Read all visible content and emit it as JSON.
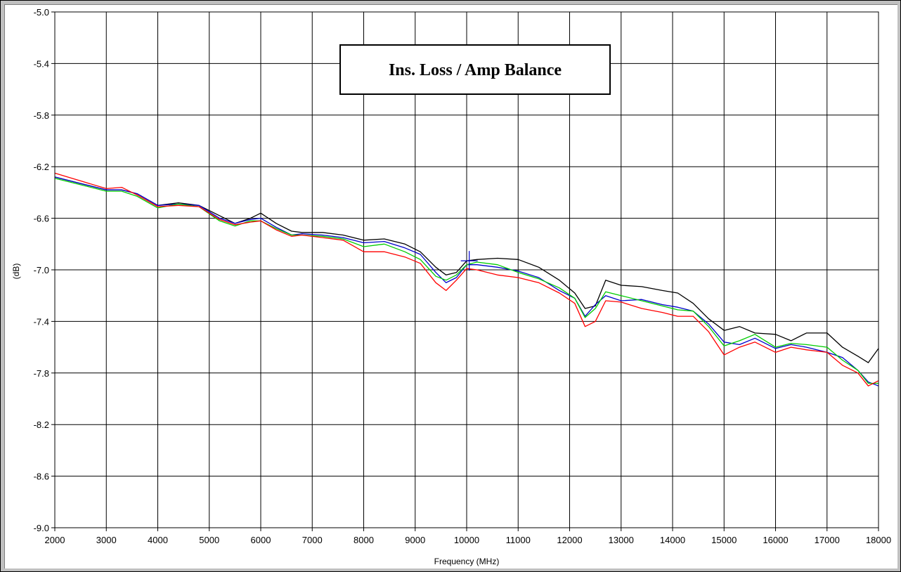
{
  "chart_data": {
    "type": "line",
    "title": "Ins. Loss / Amp Balance",
    "xlabel": "Frequency (MHz)",
    "ylabel": "(dB)",
    "xlim": [
      2000,
      18000
    ],
    "ylim": [
      -9.0,
      -5.0
    ],
    "xticks": [
      2000,
      3000,
      4000,
      5000,
      6000,
      7000,
      8000,
      9000,
      10000,
      11000,
      12000,
      13000,
      14000,
      15000,
      16000,
      17000,
      18000
    ],
    "xtick_labels": [
      "2000",
      "3000",
      "4000",
      "5000",
      "6000",
      "7000",
      "8000",
      "9000",
      "10000",
      "11000",
      "12000",
      "13000",
      "14000",
      "15000",
      "16000",
      "17000",
      "18000"
    ],
    "yticks": [
      -5.0,
      -5.4,
      -5.8,
      -6.2,
      -6.6,
      -7.0,
      -7.4,
      -7.8,
      -8.2,
      -8.6,
      -9.0
    ],
    "ytick_labels": [
      "-5.0",
      "-5.4",
      "-5.8",
      "-6.2",
      "-6.6",
      "-7.0",
      "-7.4",
      "-7.8",
      "-8.2",
      "-8.6",
      "-9.0"
    ],
    "grid": true,
    "marker": {
      "x": 10050,
      "y": -6.93
    },
    "series": [
      {
        "color": "#000000",
        "x": [
          2000,
          2500,
          3000,
          3300,
          3600,
          4000,
          4400,
          4800,
          5200,
          5500,
          5800,
          6000,
          6300,
          6600,
          6800,
          7200,
          7600,
          8000,
          8400,
          8800,
          9100,
          9400,
          9600,
          9800,
          10000,
          10200,
          10600,
          11000,
          11400,
          11800,
          12100,
          12300,
          12500,
          12700,
          13000,
          13400,
          13800,
          14100,
          14400,
          14700,
          15000,
          15300,
          15600,
          16000,
          16300,
          16600,
          17000,
          17300,
          17600,
          17800,
          18000
        ],
        "y": [
          -6.28,
          -6.33,
          -6.38,
          -6.38,
          -6.41,
          -6.5,
          -6.48,
          -6.5,
          -6.58,
          -6.64,
          -6.6,
          -6.56,
          -6.64,
          -6.7,
          -6.71,
          -6.71,
          -6.73,
          -6.77,
          -6.76,
          -6.8,
          -6.86,
          -6.98,
          -7.04,
          -7.02,
          -6.93,
          -6.92,
          -6.91,
          -6.92,
          -6.98,
          -7.08,
          -7.18,
          -7.3,
          -7.28,
          -7.08,
          -7.12,
          -7.13,
          -7.16,
          -7.18,
          -7.26,
          -7.38,
          -7.47,
          -7.44,
          -7.49,
          -7.5,
          -7.55,
          -7.49,
          -7.49,
          -7.6,
          -7.67,
          -7.72,
          -7.61
        ]
      },
      {
        "color": "#0000cc",
        "x": [
          2000,
          2500,
          3000,
          3300,
          3600,
          4000,
          4400,
          4800,
          5200,
          5500,
          5800,
          6000,
          6300,
          6600,
          6800,
          7200,
          7600,
          8000,
          8400,
          8800,
          9100,
          9400,
          9600,
          9800,
          10000,
          10200,
          10600,
          11000,
          11400,
          11800,
          12100,
          12300,
          12500,
          12700,
          13000,
          13400,
          13800,
          14100,
          14400,
          14700,
          15000,
          15300,
          15600,
          16000,
          16300,
          16600,
          17000,
          17300,
          17600,
          17800,
          18000
        ],
        "y": [
          -6.28,
          -6.33,
          -6.38,
          -6.38,
          -6.41,
          -6.5,
          -6.49,
          -6.5,
          -6.6,
          -6.64,
          -6.61,
          -6.6,
          -6.67,
          -6.73,
          -6.72,
          -6.73,
          -6.75,
          -6.79,
          -6.78,
          -6.83,
          -6.88,
          -7.02,
          -7.1,
          -7.06,
          -6.96,
          -6.96,
          -6.98,
          -7.01,
          -7.06,
          -7.16,
          -7.22,
          -7.36,
          -7.27,
          -7.2,
          -7.24,
          -7.23,
          -7.27,
          -7.29,
          -7.32,
          -7.42,
          -7.56,
          -7.58,
          -7.53,
          -7.61,
          -7.58,
          -7.6,
          -7.64,
          -7.68,
          -7.78,
          -7.87,
          -7.9
        ]
      },
      {
        "color": "#00cc00",
        "x": [
          2000,
          2500,
          3000,
          3300,
          3600,
          4000,
          4400,
          4800,
          5200,
          5500,
          5800,
          6000,
          6300,
          6600,
          6800,
          7200,
          7600,
          8000,
          8400,
          8800,
          9100,
          9400,
          9600,
          9800,
          10000,
          10200,
          10600,
          11000,
          11400,
          11800,
          12100,
          12300,
          12500,
          12700,
          13000,
          13400,
          13800,
          14100,
          14400,
          14700,
          15000,
          15300,
          15600,
          16000,
          16300,
          16600,
          17000,
          17300,
          17600,
          17800,
          18000
        ],
        "y": [
          -6.29,
          -6.34,
          -6.39,
          -6.39,
          -6.43,
          -6.52,
          -6.49,
          -6.51,
          -6.62,
          -6.66,
          -6.62,
          -6.62,
          -6.68,
          -6.73,
          -6.73,
          -6.74,
          -6.76,
          -6.82,
          -6.8,
          -6.86,
          -6.92,
          -7.05,
          -7.08,
          -7.04,
          -6.96,
          -6.94,
          -6.96,
          -7.02,
          -7.07,
          -7.14,
          -7.22,
          -7.37,
          -7.3,
          -7.17,
          -7.2,
          -7.24,
          -7.28,
          -7.31,
          -7.32,
          -7.44,
          -7.59,
          -7.55,
          -7.5,
          -7.6,
          -7.57,
          -7.58,
          -7.6,
          -7.7,
          -7.78,
          -7.88,
          -7.88
        ]
      },
      {
        "color": "#ff0000",
        "x": [
          2000,
          2500,
          3000,
          3300,
          3600,
          4000,
          4400,
          4800,
          5200,
          5500,
          5800,
          6000,
          6300,
          6600,
          6800,
          7200,
          7600,
          8000,
          8400,
          8800,
          9100,
          9400,
          9600,
          9800,
          10000,
          10200,
          10600,
          11000,
          11400,
          11800,
          12100,
          12300,
          12500,
          12700,
          13000,
          13400,
          13800,
          14100,
          14400,
          14700,
          15000,
          15300,
          15600,
          16000,
          16300,
          16600,
          17000,
          17300,
          17600,
          17800,
          18000
        ],
        "y": [
          -6.25,
          -6.31,
          -6.37,
          -6.36,
          -6.42,
          -6.51,
          -6.5,
          -6.51,
          -6.61,
          -6.65,
          -6.63,
          -6.62,
          -6.69,
          -6.74,
          -6.73,
          -6.75,
          -6.77,
          -6.86,
          -6.86,
          -6.9,
          -6.95,
          -7.1,
          -7.16,
          -7.08,
          -6.99,
          -7.0,
          -7.04,
          -7.06,
          -7.1,
          -7.18,
          -7.26,
          -7.44,
          -7.4,
          -7.24,
          -7.25,
          -7.3,
          -7.33,
          -7.36,
          -7.36,
          -7.48,
          -7.66,
          -7.6,
          -7.56,
          -7.64,
          -7.6,
          -7.62,
          -7.64,
          -7.74,
          -7.8,
          -7.9,
          -7.86
        ]
      }
    ]
  }
}
